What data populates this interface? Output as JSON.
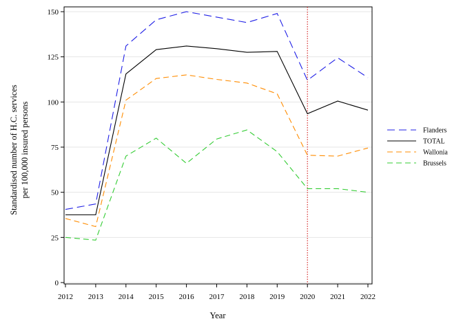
{
  "chart_data": {
    "type": "line",
    "title": "",
    "xlabel": "Year",
    "ylabel_lines": [
      "Standardised number of H.C. services",
      "per 100,000 insured persons"
    ],
    "x": [
      2012,
      2013,
      2014,
      2015,
      2016,
      2017,
      2018,
      2019,
      2020,
      2021,
      2022
    ],
    "xlim": [
      2012,
      2022
    ],
    "ylim": [
      0,
      150
    ],
    "yticks": [
      0,
      25,
      50,
      75,
      100,
      125,
      150
    ],
    "grid": "horizontal",
    "legend_position": "right",
    "vline": {
      "x": 2020,
      "color": "#cc0000",
      "style": "dotted"
    },
    "series": [
      {
        "name": "Flanders",
        "color": "#1f1fe6",
        "dash": "long-dash",
        "values": [
          40.5,
          43.5,
          131,
          145.5,
          150,
          147,
          144,
          149,
          112,
          124.5,
          113.5
        ]
      },
      {
        "name": "TOTAL",
        "color": "#000000",
        "dash": "solid",
        "values": [
          37.5,
          37.5,
          115.5,
          129,
          131,
          129.5,
          127.5,
          128,
          93.5,
          100.5,
          95.5
        ]
      },
      {
        "name": "Wallonia",
        "color": "#ff8c00",
        "dash": "dash",
        "values": [
          35.5,
          31,
          101,
          113,
          115,
          112.5,
          110.5,
          104.5,
          70.5,
          70,
          74.5
        ]
      },
      {
        "name": "Brussels",
        "color": "#33cc33",
        "dash": "dash",
        "values": [
          25,
          23.5,
          70,
          80,
          66,
          79.5,
          84.5,
          72.5,
          52,
          52,
          50
        ]
      }
    ]
  }
}
